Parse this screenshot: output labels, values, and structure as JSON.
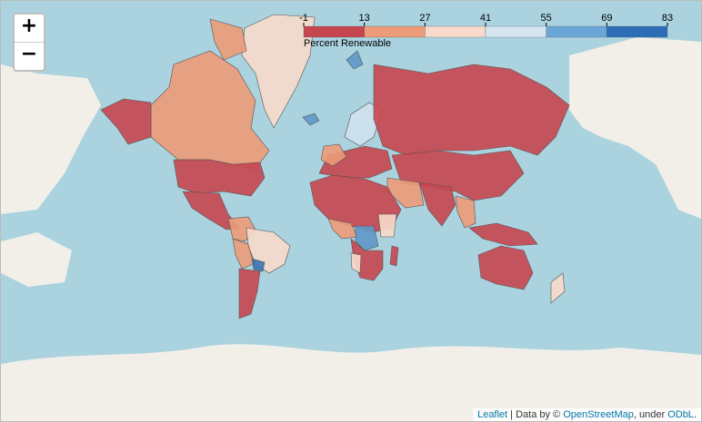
{
  "zoom": {
    "in": "+",
    "out": "−"
  },
  "legend": {
    "caption": "Percent Renewable",
    "ticks": [
      -1,
      13,
      27,
      41,
      55,
      69,
      83
    ],
    "colors": [
      "#c5464f",
      "#ec9a78",
      "#f7dacb",
      "#d6e6f1",
      "#6aa6d6",
      "#2c6db6"
    ]
  },
  "attribution": [
    "Leaflet",
    "| Data by ©",
    "OpenStreetMap",
    ", under",
    "ODbL",
    "."
  ]
}
